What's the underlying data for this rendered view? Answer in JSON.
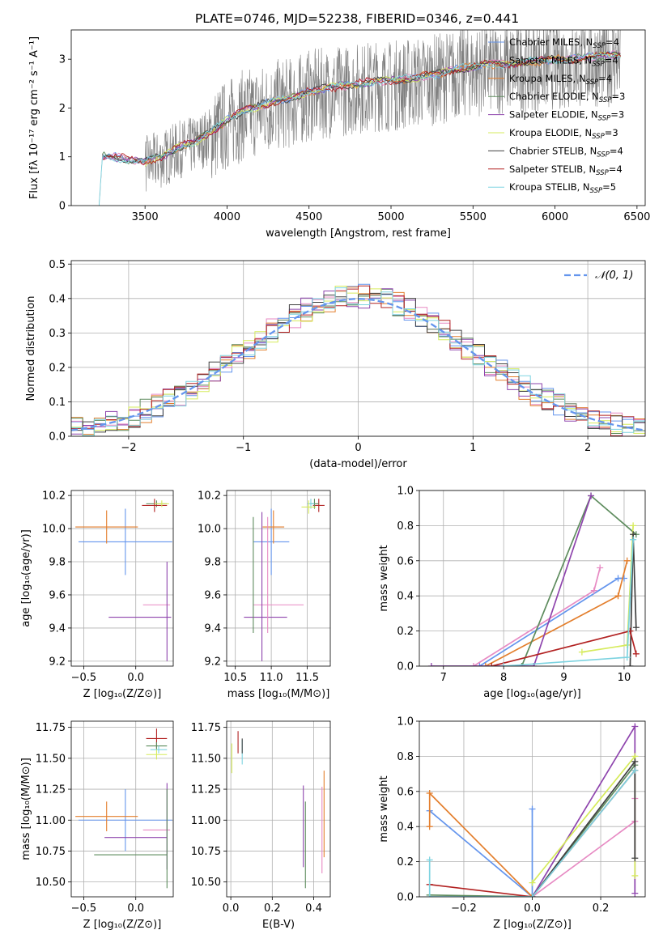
{
  "figure": {
    "title": "PLATE=0746, MJD=52238, FIBERID=0346, z=0.441"
  },
  "colors": {
    "data": "#808080",
    "series": [
      "#6495ED",
      "#E78AC3",
      "#E37E2C",
      "#5E8C5E",
      "#8E44AD",
      "#D6EB5C",
      "#404040",
      "#B22222",
      "#7DD3E0"
    ]
  },
  "chart_data": [
    {
      "id": "spectrum",
      "type": "line",
      "title": "PLATE=0746, MJD=52238, FIBERID=0346, z=0.441",
      "xlabel": "wavelength [Angstrom, rest frame]",
      "ylabel": "Flux [fλ 10⁻¹⁷ erg cm⁻² s⁻¹ A⁻¹]",
      "xlim": [
        3050,
        6550
      ],
      "ylim": [
        0,
        3.6
      ],
      "xticks": [
        3500,
        4000,
        4500,
        5000,
        5500,
        6000,
        6500
      ],
      "yticks": [
        0,
        1,
        2,
        3
      ],
      "grid": false,
      "legend_position": "top-right",
      "legend": [
        {
          "label": "Chabrier MILES, N",
          "sub": "SSP",
          "tail": "=4",
          "color": "#6495ED"
        },
        {
          "label": "Salpeter MILES, N",
          "sub": "SSP",
          "tail": "=4",
          "color": "#E78AC3"
        },
        {
          "label": "Kroupa MILES, N",
          "sub": "SSP",
          "tail": "=4",
          "color": "#E37E2C"
        },
        {
          "label": "Chabrier ELODIE, N",
          "sub": "SSP",
          "tail": "=3",
          "color": "#5E8C5E"
        },
        {
          "label": "Salpeter ELODIE, N",
          "sub": "SSP",
          "tail": "=3",
          "color": "#8E44AD"
        },
        {
          "label": "Kroupa ELODIE, N",
          "sub": "SSP",
          "tail": "=3",
          "color": "#D6EB5C"
        },
        {
          "label": "Chabrier STELIB, N",
          "sub": "SSP",
          "tail": "=4",
          "color": "#404040"
        },
        {
          "label": "Salpeter STELIB, N",
          "sub": "SSP",
          "tail": "=4",
          "color": "#B22222"
        },
        {
          "label": "Kroupa STELIB, N",
          "sub": "SSP",
          "tail": "=5",
          "color": "#7DD3E0"
        }
      ],
      "continuum": {
        "x": [
          3220,
          3240,
          3300,
          3400,
          3500,
          3600,
          3700,
          3800,
          3900,
          4000,
          4100,
          4200,
          4300,
          4400,
          4500,
          4600,
          4700,
          4800,
          4900,
          5000,
          5100,
          5200,
          5300,
          5400,
          5500,
          5600,
          5700,
          5800,
          5900,
          6000,
          6100,
          6200,
          6300,
          6400
        ],
        "y": [
          0.0,
          1.0,
          1.0,
          0.95,
          0.9,
          1.0,
          1.2,
          1.3,
          1.5,
          1.75,
          1.95,
          2.05,
          2.15,
          2.2,
          2.35,
          2.4,
          2.45,
          2.5,
          2.55,
          2.55,
          2.6,
          2.65,
          2.7,
          2.8,
          2.85,
          2.9,
          2.9,
          2.95,
          2.95,
          3.0,
          3.0,
          3.05,
          3.05,
          3.1
        ]
      },
      "noise_start": 3500
    },
    {
      "id": "residuals",
      "type": "bar",
      "xlabel": "(data-model)/error",
      "ylabel": "Normed distribution",
      "xlim": [
        -2.5,
        2.5
      ],
      "ylim": [
        0,
        0.51
      ],
      "xticks": [
        -2,
        -1,
        0,
        1,
        2
      ],
      "yticks": [
        0.0,
        0.1,
        0.2,
        0.3,
        0.4,
        0.5
      ],
      "grid": true,
      "legend_position": "top-right",
      "legend": [
        {
          "label": "𝒩(0, 1)",
          "color": "#6495ED"
        }
      ],
      "bin_width": 0.1,
      "normal": {
        "mean": 0,
        "sigma": 1
      }
    },
    {
      "id": "age_vs_Z",
      "type": "scatter",
      "xlabel": "Z [log₁₀(Z/Z⊙)]",
      "ylabel": "age  [log₁₀(age/yr)]",
      "xlim": [
        -0.62,
        0.36
      ],
      "ylim": [
        9.17,
        10.23
      ],
      "xticks": [
        -0.5,
        0.0
      ],
      "yticks": [
        9.2,
        9.4,
        9.6,
        9.8,
        10.0,
        10.2
      ],
      "grid": true,
      "points": [
        {
          "x": -0.1,
          "xerr": 0.45,
          "y": 9.92,
          "yerr": 0.2,
          "color": "#6495ED"
        },
        {
          "x": -0.28,
          "xerr": 0.3,
          "y": 10.01,
          "yerr": 0.1,
          "color": "#E37E2C"
        },
        {
          "x": 0.2,
          "xerr": 0.13,
          "y": 9.54,
          "yerr": 0.0,
          "color": "#E78AC3"
        },
        {
          "x": 0.04,
          "xerr": 0.3,
          "y": 9.465,
          "yerr": 0.0,
          "color": "#8E44AD"
        },
        {
          "x": 0.3,
          "xerr": 0.0,
          "y": 9.5,
          "yerr": 0.3,
          "color": "#8E44AD"
        },
        {
          "x": 0.2,
          "xerr": 0.1,
          "y": 10.15,
          "yerr": 0.02,
          "color": "#5E8C5E"
        },
        {
          "x": 0.18,
          "xerr": 0.12,
          "y": 10.14,
          "yerr": 0.04,
          "color": "#B22222"
        },
        {
          "x": 0.25,
          "xerr": 0.07,
          "y": 10.15,
          "yerr": 0.02,
          "color": "#D6EB5C"
        }
      ]
    },
    {
      "id": "age_vs_mass",
      "type": "scatter",
      "xlabel": "mass [log₁₀(M/M⊙)]",
      "ylabel": "",
      "xlim": [
        10.38,
        11.82
      ],
      "ylim": [
        9.17,
        10.23
      ],
      "xticks": [
        10.5,
        11.0,
        11.5
      ],
      "yticks": [
        9.2,
        9.4,
        9.6,
        9.8,
        10.0,
        10.2
      ],
      "grid": true,
      "points": [
        {
          "x": 11.0,
          "xerr": 0.25,
          "y": 9.92,
          "yerr": 0.2,
          "color": "#6495ED"
        },
        {
          "x": 11.03,
          "xerr": 0.15,
          "y": 10.01,
          "yerr": 0.1,
          "color": "#E37E2C"
        },
        {
          "x": 11.1,
          "xerr": 0.35,
          "y": 9.54,
          "yerr": 0.0,
          "color": "#E78AC3"
        },
        {
          "x": 10.92,
          "xerr": 0.3,
          "y": 9.465,
          "yerr": 0.0,
          "color": "#8E44AD"
        },
        {
          "x": 10.87,
          "xerr": 0.0,
          "y": 9.65,
          "yerr": 0.45,
          "color": "#8E44AD"
        },
        {
          "x": 10.75,
          "xerr": 0.0,
          "y": 9.72,
          "yerr": 0.35,
          "color": "#5E8C5E"
        },
        {
          "x": 10.95,
          "xerr": 0.0,
          "y": 9.72,
          "yerr": 0.35,
          "color": "#E78AC3"
        },
        {
          "x": 11.66,
          "xerr": 0.08,
          "y": 10.14,
          "yerr": 0.04,
          "color": "#B22222"
        },
        {
          "x": 11.6,
          "xerr": 0.06,
          "y": 10.15,
          "yerr": 0.03,
          "color": "#5E8C5E"
        },
        {
          "x": 11.55,
          "xerr": 0.05,
          "y": 10.15,
          "yerr": 0.03,
          "color": "#7DD3E0"
        },
        {
          "x": 11.52,
          "xerr": 0.1,
          "y": 10.13,
          "yerr": 0.04,
          "color": "#D6EB5C"
        }
      ]
    },
    {
      "id": "weight_vs_age",
      "type": "line",
      "xlabel": "age  [log₁₀(age/yr)]",
      "ylabel": "mass weight",
      "xlim": [
        6.6,
        10.35
      ],
      "ylim": [
        0,
        1.0
      ],
      "xticks": [
        7,
        8,
        9,
        10
      ],
      "yticks": [
        0.0,
        0.2,
        0.4,
        0.6,
        0.8,
        1.0
      ],
      "grid": true,
      "series": [
        {
          "color": "#6495ED",
          "x": [
            7.6,
            9.9,
            10.0
          ],
          "y": [
            0.0,
            0.5,
            0.5
          ]
        },
        {
          "color": "#E37E2C",
          "x": [
            7.7,
            9.9,
            10.05
          ],
          "y": [
            0.0,
            0.4,
            0.6
          ]
        },
        {
          "color": "#E78AC3",
          "x": [
            7.5,
            9.5,
            9.6
          ],
          "y": [
            0.0,
            0.43,
            0.56
          ]
        },
        {
          "color": "#5E8C5E",
          "x": [
            8.3,
            9.45,
            10.2
          ],
          "y": [
            0.0,
            0.97,
            0.75
          ]
        },
        {
          "color": "#8E44AD",
          "x": [
            6.8,
            8.5,
            9.45
          ],
          "y": [
            0.0,
            0.0,
            0.97
          ]
        },
        {
          "color": "#D6EB5C",
          "x": [
            9.3,
            10.05,
            10.15
          ],
          "y": [
            0.08,
            0.12,
            0.8
          ]
        },
        {
          "color": "#404040",
          "x": [
            10.1,
            10.15,
            10.2
          ],
          "y": [
            0.0,
            0.75,
            0.22
          ]
        },
        {
          "color": "#B22222",
          "x": [
            7.8,
            10.1,
            10.2
          ],
          "y": [
            0.0,
            0.2,
            0.07
          ]
        },
        {
          "color": "#7DD3E0",
          "x": [
            8.0,
            10.05,
            10.15
          ],
          "y": [
            0.0,
            0.05,
            0.72
          ]
        }
      ]
    },
    {
      "id": "mass_vs_Z",
      "type": "scatter",
      "xlabel": "Z [log₁₀(Z/Z⊙)]",
      "ylabel": "mass [log₁₀(M/M⊙)]",
      "xlim": [
        -0.62,
        0.36
      ],
      "ylim": [
        10.38,
        11.8
      ],
      "xticks": [
        -0.5,
        0.0
      ],
      "yticks": [
        10.5,
        10.75,
        11.0,
        11.25,
        11.5,
        11.75
      ],
      "grid": true,
      "points": [
        {
          "x": -0.1,
          "xerr": 0.45,
          "y": 11.0,
          "yerr": 0.25,
          "color": "#6495ED"
        },
        {
          "x": -0.28,
          "xerr": 0.3,
          "y": 11.03,
          "yerr": 0.12,
          "color": "#E37E2C"
        },
        {
          "x": 0.2,
          "xerr": 0.13,
          "y": 10.92,
          "yerr": 0.0,
          "color": "#E78AC3"
        },
        {
          "x": 0.0,
          "xerr": 0.3,
          "y": 10.86,
          "yerr": 0.0,
          "color": "#8E44AD"
        },
        {
          "x": 0.3,
          "xerr": 0.0,
          "y": 10.95,
          "yerr": 0.35,
          "color": "#8E44AD"
        },
        {
          "x": -0.05,
          "xerr": 0.35,
          "y": 10.72,
          "yerr": 0.0,
          "color": "#5E8C5E"
        },
        {
          "x": 0.3,
          "xerr": 0.0,
          "y": 10.85,
          "yerr": 0.4,
          "color": "#5E8C5E"
        },
        {
          "x": 0.2,
          "xerr": 0.1,
          "y": 11.66,
          "yerr": 0.08,
          "color": "#B22222"
        },
        {
          "x": 0.2,
          "xerr": 0.1,
          "y": 11.6,
          "yerr": 0.03,
          "color": "#5E8C5E"
        },
        {
          "x": 0.22,
          "xerr": 0.08,
          "y": 11.57,
          "yerr": 0.03,
          "color": "#7DD3E0"
        },
        {
          "x": 0.2,
          "xerr": 0.1,
          "y": 11.53,
          "yerr": 0.04,
          "color": "#D6EB5C"
        }
      ]
    },
    {
      "id": "mass_vs_EBV",
      "type": "scatter",
      "xlabel": "E(B-V)",
      "ylabel": "",
      "xlim": [
        -0.02,
        0.48
      ],
      "ylim": [
        10.38,
        11.8
      ],
      "xticks": [
        0.0,
        0.2,
        0.4
      ],
      "yticks": [
        10.5,
        10.75,
        11.0,
        11.25,
        11.5,
        11.75
      ],
      "grid": true,
      "points": [
        {
          "x": 0.005,
          "xerr": 0.0,
          "y": 11.5,
          "yerr": 0.12,
          "color": "#D6EB5C"
        },
        {
          "x": 0.035,
          "xerr": 0.0,
          "y": 11.63,
          "yerr": 0.09,
          "color": "#B22222"
        },
        {
          "x": 0.055,
          "xerr": 0.0,
          "y": 11.55,
          "yerr": 0.1,
          "color": "#7DD3E0"
        },
        {
          "x": 0.055,
          "xerr": 0.0,
          "y": 11.6,
          "yerr": 0.06,
          "color": "#404040"
        },
        {
          "x": 0.35,
          "xerr": 0.0,
          "y": 10.95,
          "yerr": 0.33,
          "color": "#8E44AD"
        },
        {
          "x": 0.36,
          "xerr": 0.0,
          "y": 10.8,
          "yerr": 0.35,
          "color": "#5E8C5E"
        },
        {
          "x": 0.44,
          "xerr": 0.0,
          "y": 10.92,
          "yerr": 0.35,
          "color": "#E78AC3"
        },
        {
          "x": 0.45,
          "xerr": 0.0,
          "y": 11.05,
          "yerr": 0.35,
          "color": "#E37E2C"
        }
      ]
    },
    {
      "id": "weight_vs_Z",
      "type": "line",
      "xlabel": "Z [log₁₀(Z/Z⊙)]",
      "ylabel": "mass weight",
      "xlim": [
        -0.33,
        0.33
      ],
      "ylim": [
        0,
        1.0
      ],
      "xticks": [
        -0.2,
        0.0,
        0.2
      ],
      "yticks": [
        0.0,
        0.2,
        0.4,
        0.6,
        0.8,
        1.0
      ],
      "grid": true,
      "series": [
        {
          "color": "#6495ED",
          "x": [
            -0.3,
            0.0,
            0.0
          ],
          "y": [
            0.49,
            0.0,
            0.5
          ]
        },
        {
          "color": "#E37E2C",
          "x": [
            -0.3,
            -0.3,
            0.0
          ],
          "y": [
            0.4,
            0.59,
            0.0
          ]
        },
        {
          "color": "#E78AC3",
          "x": [
            0.0,
            0.3,
            0.3
          ],
          "y": [
            0.0,
            0.43,
            0.56
          ]
        },
        {
          "color": "#5E8C5E",
          "x": [
            -0.3,
            0.0,
            0.3
          ],
          "y": [
            0.01,
            0.0,
            0.75
          ]
        },
        {
          "color": "#8E44AD",
          "x": [
            0.0,
            0.3,
            0.3
          ],
          "y": [
            0.0,
            0.97,
            0.02
          ]
        },
        {
          "color": "#D6EB5C",
          "x": [
            0.0,
            0.3,
            0.3
          ],
          "y": [
            0.08,
            0.8,
            0.12
          ]
        },
        {
          "color": "#404040",
          "x": [
            0.0,
            0.3,
            0.3
          ],
          "y": [
            0.0,
            0.77,
            0.22
          ]
        },
        {
          "color": "#B22222",
          "x": [
            -0.3,
            0.0,
            0.3
          ],
          "y": [
            0.07,
            0.0,
            0.72
          ]
        },
        {
          "color": "#7DD3E0",
          "x": [
            -0.3,
            -0.3,
            0.0,
            0.3
          ],
          "y": [
            0.21,
            0.0,
            0.0,
            0.72
          ]
        }
      ]
    }
  ]
}
